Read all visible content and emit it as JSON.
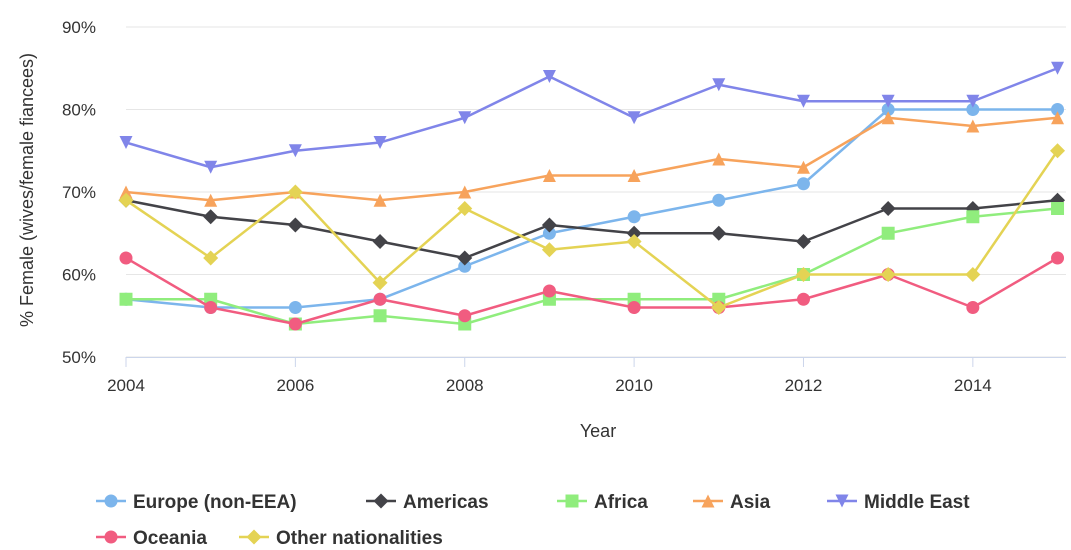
{
  "chart_data": {
    "type": "line",
    "title": "",
    "xlabel": "Year",
    "ylabel": "% Female (wives/female fiancees)",
    "x": [
      2004,
      2005,
      2006,
      2007,
      2008,
      2009,
      2010,
      2011,
      2012,
      2013,
      2014,
      2015
    ],
    "xticks": [
      "2004",
      "2006",
      "2008",
      "2010",
      "2012",
      "2014"
    ],
    "yticks": [
      "50%",
      "60%",
      "70%",
      "80%",
      "90%"
    ],
    "ylim": [
      50,
      90
    ],
    "xlim": [
      2004,
      2015.1
    ],
    "grid": "horizontal",
    "legend_position": "bottom-left",
    "series": [
      {
        "name": "Europe (non-EEA)",
        "color": "#7cb5ec",
        "marker": "circle",
        "values": [
          57,
          56,
          56,
          57,
          61,
          65,
          67,
          69,
          71,
          80,
          80,
          80
        ]
      },
      {
        "name": "Americas",
        "color": "#434348",
        "marker": "diamond",
        "values": [
          69,
          67,
          66,
          64,
          62,
          66,
          65,
          65,
          64,
          68,
          68,
          69
        ]
      },
      {
        "name": "Africa",
        "color": "#90ed7d",
        "marker": "square",
        "values": [
          57,
          57,
          54,
          55,
          54,
          57,
          57,
          57,
          60,
          65,
          67,
          68
        ]
      },
      {
        "name": "Asia",
        "color": "#f7a35c",
        "marker": "triangle",
        "values": [
          70,
          69,
          70,
          69,
          70,
          72,
          72,
          74,
          73,
          79,
          78,
          79
        ]
      },
      {
        "name": "Middle East",
        "color": "#8085e9",
        "marker": "triangle-down",
        "values": [
          76,
          73,
          75,
          76,
          79,
          84,
          79,
          83,
          81,
          81,
          81,
          85
        ]
      },
      {
        "name": "Oceania",
        "color": "#f15c80",
        "marker": "circle",
        "values": [
          62,
          56,
          54,
          57,
          55,
          58,
          56,
          56,
          57,
          60,
          56,
          62
        ]
      },
      {
        "name": "Other nationalities",
        "color": "#e4d354",
        "marker": "diamond",
        "values": [
          69,
          62,
          70,
          59,
          68,
          63,
          64,
          56,
          60,
          60,
          60,
          75
        ]
      }
    ]
  }
}
